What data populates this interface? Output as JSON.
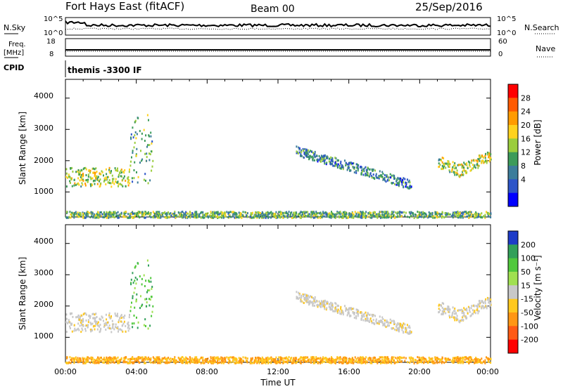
{
  "header": {
    "station": "Fort Hays East (fitACF)",
    "beam": "Beam 00",
    "date": "25/Sep/2016"
  },
  "top_panels": {
    "noise_left_label": "N.Sky",
    "noise_right_label": "N.Search",
    "noise_right_ticks": [
      "10^5",
      "10^0"
    ],
    "noise_left_ticks": [
      "10^5",
      "10^0"
    ],
    "freq_label_line1": "Freq.",
    "freq_label_line2": "[MHz]",
    "freq_ticks": [
      "18",
      "8"
    ],
    "nave_label": "Nave",
    "nave_ticks": [
      "60",
      "0"
    ],
    "cpid_label": "CPID",
    "cpid_value": "themis -3300 IF"
  },
  "axes": {
    "ylabel": "Slant Range [km]",
    "xlabel": "Time UT",
    "y_ticks": [
      "4000",
      "3000",
      "2000",
      "1000"
    ],
    "x_ticks": [
      "00:00",
      "04:00",
      "08:00",
      "12:00",
      "16:00",
      "20:00",
      "00:00"
    ]
  },
  "power_scale": {
    "label": "Power [dB]",
    "ticks": [
      "28",
      "24",
      "20",
      "16",
      "12",
      "8",
      "4"
    ],
    "colors": [
      "#ff0000",
      "#ff5a00",
      "#ff9b00",
      "#ffd21e",
      "#9bcd3c",
      "#3c9b5a",
      "#3c7d9b",
      "#2d55c8",
      "#0000ff"
    ]
  },
  "velocity_scale": {
    "label": "Velocity [m s⁻¹]",
    "ticks": [
      "200",
      "100",
      "50",
      "15",
      "-15",
      "-50",
      "-100",
      "-200"
    ],
    "colors": [
      "#1e3cc8",
      "#32a05a",
      "#50c83c",
      "#a0e050",
      "#c8c8c8",
      "#ffc81e",
      "#ff9614",
      "#ff5a14",
      "#ff0000"
    ]
  },
  "chart_data": {
    "type": "heatmap",
    "title": "Fort Hays East (fitACF)",
    "xlabel": "Time UT",
    "ylabel": "Slant Range [km]",
    "x_range": [
      "00:00",
      "24:00"
    ],
    "ylim": [
      200,
      4600
    ],
    "grid": false,
    "panels": [
      "Power [dB]",
      "Velocity [m s⁻¹]"
    ],
    "echo_regions": [
      {
        "start_hour": 0.0,
        "end_hour": 3.6,
        "range_km": [
          1200,
          1800
        ],
        "power_db": 16,
        "velocity": -15
      },
      {
        "start_hour": 3.6,
        "end_hour": 4.9,
        "range_km": [
          1300,
          3500
        ],
        "power_db": 12,
        "velocity": 50
      },
      {
        "start_hour": 13.0,
        "end_hour": 19.5,
        "range_km": [
          1100,
          2300
        ],
        "power_db": 8,
        "velocity": -15
      },
      {
        "start_hour": 21.0,
        "end_hour": 24.0,
        "range_km": [
          1500,
          2300
        ],
        "power_db": 16,
        "velocity": -15
      },
      {
        "start_hour": 0.0,
        "end_hour": 24.0,
        "range_km": [
          200,
          400
        ],
        "power_db": 12,
        "velocity": -50
      }
    ]
  }
}
